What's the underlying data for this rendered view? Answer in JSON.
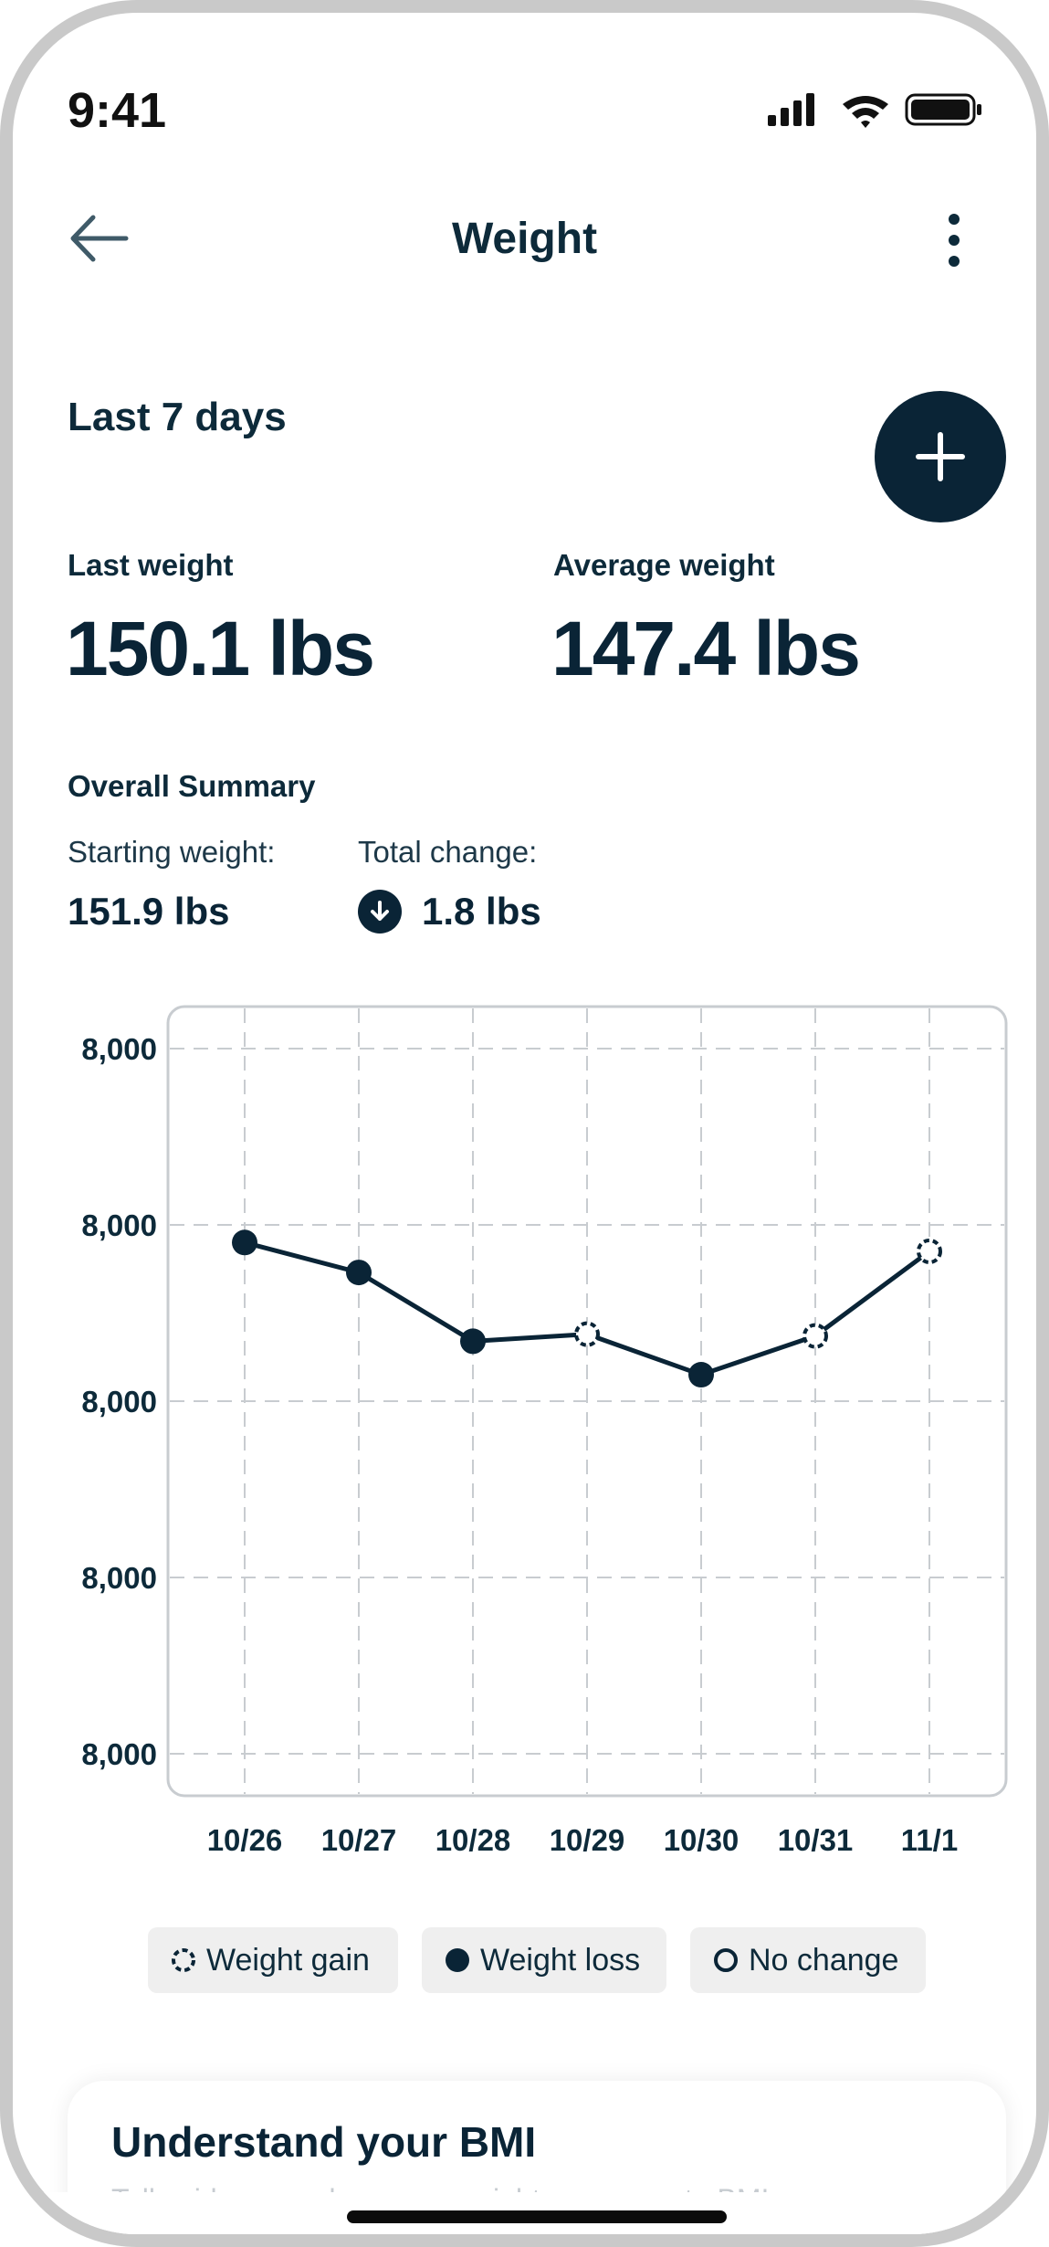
{
  "status_bar": {
    "time": "9:41"
  },
  "nav": {
    "title": "Weight"
  },
  "header": {
    "range_label": "Last 7 days"
  },
  "stats": {
    "last_weight_label": "Last weight",
    "last_weight_value": "150.1 lbs",
    "average_weight_label": "Average weight",
    "average_weight_value": "147.4 lbs"
  },
  "summary": {
    "title": "Overall Summary",
    "starting_label": "Starting weight:",
    "starting_value": "151.9 lbs",
    "change_label": "Total change:",
    "change_value": "1.8 lbs"
  },
  "chart_data": {
    "type": "line",
    "categories": [
      "10/26",
      "10/27",
      "10/28",
      "10/29",
      "10/30",
      "10/31",
      "11/1"
    ],
    "y_tick_labels": [
      "8,000",
      "8,000",
      "8,000",
      "8,000",
      "8,000"
    ],
    "ylim": [
      0,
      4
    ],
    "values": [
      2.9,
      2.73,
      2.34,
      2.38,
      2.15,
      2.37,
      2.85
    ],
    "point_types": [
      "loss",
      "loss",
      "loss",
      "gain",
      "loss",
      "gain",
      "gain"
    ],
    "grid": true,
    "colors": {
      "line": "#0a2436",
      "grid": "#c8ccd0"
    }
  },
  "legend": {
    "gain_label": "Weight gain",
    "loss_label": "Weight loss",
    "no_change_label": "No change"
  },
  "bmi_card": {
    "title": "Understand your BMI",
    "subtitle": "Tell evidence on how your weight compares to BMI ranges",
    "chevron": "›"
  }
}
